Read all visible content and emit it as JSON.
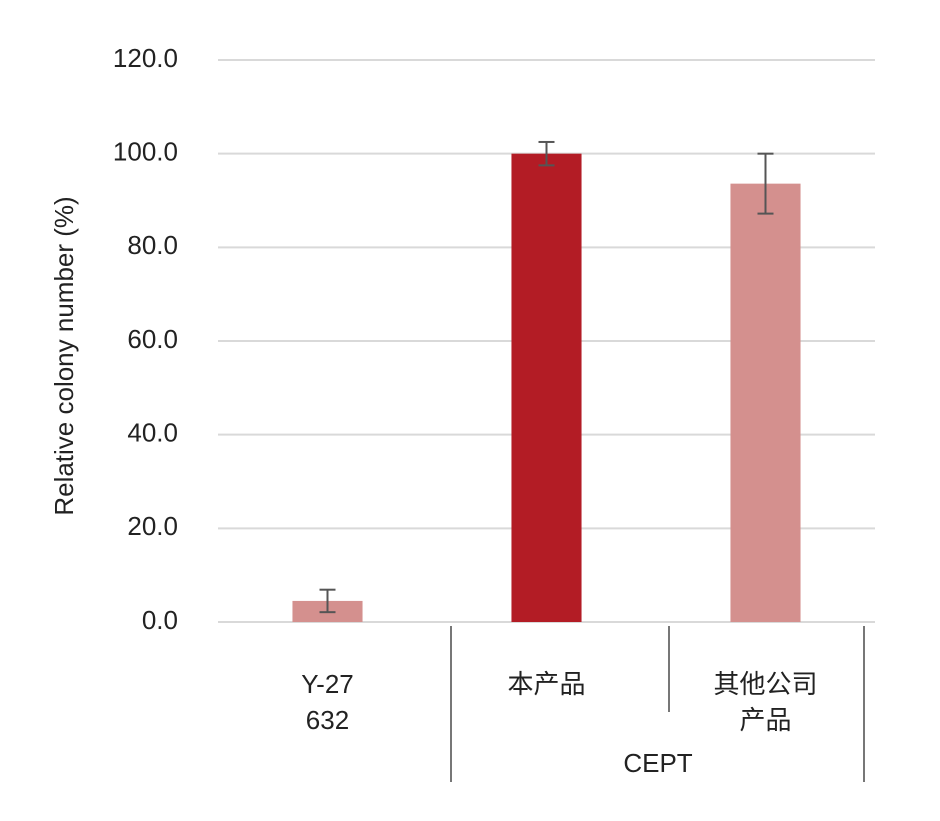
{
  "chart_data": {
    "type": "bar",
    "y_label": "Relative colony number (%)",
    "categories": [
      "Y-27632",
      "本产品",
      "其他公司产品"
    ],
    "category_groups": [
      null,
      "CEPT",
      "CEPT"
    ],
    "values": [
      4.5,
      100,
      93.6
    ],
    "errors": [
      2.4,
      2.5,
      6.4
    ],
    "colors": [
      "#d4908e",
      "#b31c25",
      "#d4908e"
    ],
    "ylim": [
      0,
      120
    ],
    "yticks": [
      {
        "value": 0,
        "label": "0.0"
      },
      {
        "value": 20,
        "label": "20.0"
      },
      {
        "value": 40,
        "label": "40.0"
      },
      {
        "value": 60,
        "label": "60.0"
      },
      {
        "value": 80,
        "label": "80.0"
      },
      {
        "value": 100,
        "label": "100.0"
      },
      {
        "value": 120,
        "label": "120.0"
      }
    ],
    "grid": true
  }
}
